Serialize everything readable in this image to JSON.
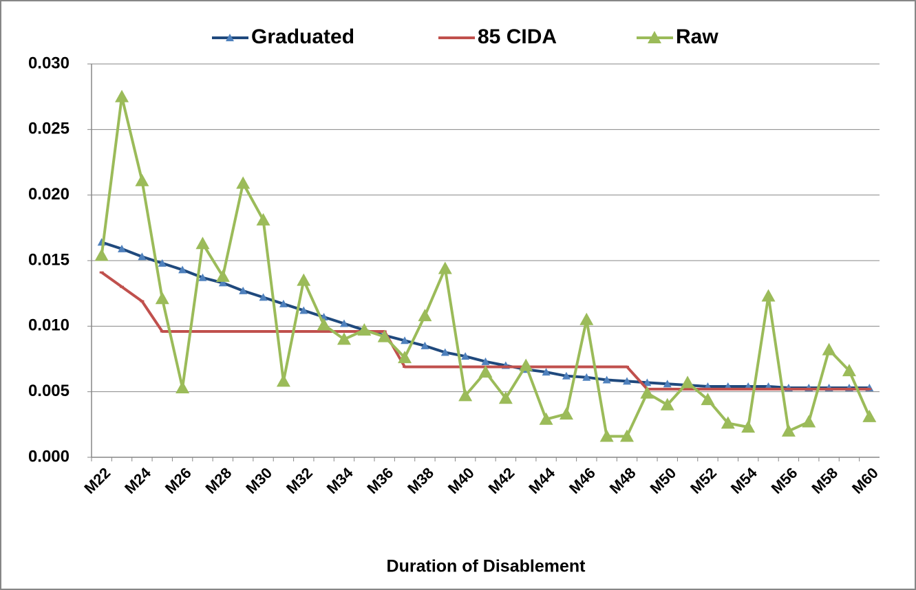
{
  "chart_data": {
    "type": "line",
    "x_label": "Duration of Disablement",
    "categories": [
      "M22",
      null,
      "M24",
      null,
      "M26",
      null,
      "M28",
      null,
      "M30",
      null,
      "M32",
      null,
      "M34",
      null,
      "M36",
      null,
      "M38",
      null,
      "M40",
      null,
      "M42",
      null,
      "M44",
      null,
      "M46",
      null,
      "M48",
      null,
      "M50",
      null,
      "M52",
      null,
      "M54",
      null,
      "M56",
      null,
      "M58",
      null,
      "M60"
    ],
    "ylim": [
      0,
      0.03
    ],
    "yticks": [
      {
        "value": 0,
        "label": "0.000"
      },
      {
        "value": 0.005,
        "label": "0.005"
      },
      {
        "value": 0.01,
        "label": "0.010"
      },
      {
        "value": 0.015,
        "label": "0.015"
      },
      {
        "value": 0.02,
        "label": "0.020"
      },
      {
        "value": 0.025,
        "label": "0.025"
      },
      {
        "value": 0.03,
        "label": "0.030"
      }
    ],
    "grid": true,
    "legend": "top",
    "series": [
      {
        "name": "Graduated",
        "color": "#1f497d",
        "marker": "small-triangle",
        "marker_color": "#4f81bd",
        "values": [
          0.0164,
          0.0159,
          0.0153,
          0.0148,
          0.0143,
          0.0137,
          0.0133,
          0.0127,
          0.0122,
          0.0117,
          0.0112,
          0.0107,
          0.0102,
          0.0097,
          0.0093,
          0.0089,
          0.0085,
          0.008,
          0.0077,
          0.0073,
          0.007,
          0.0067,
          0.0065,
          0.0062,
          0.0061,
          0.0059,
          0.0058,
          0.0057,
          0.0056,
          0.0055,
          0.0054,
          0.0054,
          0.0054,
          0.0054,
          0.0053,
          0.0053,
          0.0053,
          0.0053,
          0.0053
        ]
      },
      {
        "name": "85 CIDA",
        "color": "#c0504d",
        "marker": "dash",
        "marker_color": "#c0504d",
        "values": [
          0.0141,
          0.013,
          0.0119,
          0.0096,
          0.0096,
          0.0096,
          0.0096,
          0.0096,
          0.0096,
          0.0096,
          0.0096,
          0.0096,
          0.0096,
          0.0096,
          0.0096,
          0.0069,
          0.0069,
          0.0069,
          0.0069,
          0.0069,
          0.0069,
          0.0069,
          0.0069,
          0.0069,
          0.0069,
          0.0069,
          0.0069,
          0.0052,
          0.0052,
          0.0052,
          0.0052,
          0.0052,
          0.0052,
          0.0052,
          0.0052,
          0.0052,
          0.0052,
          0.0052,
          0.0052
        ]
      },
      {
        "name": "Raw",
        "color": "#9bbb59",
        "marker": "triangle",
        "marker_color": "#9bbb59",
        "values": [
          0.0154,
          0.0275,
          0.0211,
          0.0121,
          0.0053,
          0.0163,
          0.0138,
          0.0209,
          0.0181,
          0.0058,
          0.0135,
          0.0101,
          0.009,
          0.0097,
          0.0092,
          0.0076,
          0.0108,
          0.0144,
          0.0047,
          0.0065,
          0.0045,
          0.007,
          0.0029,
          0.0033,
          0.0105,
          0.0016,
          0.0016,
          0.0049,
          0.004,
          0.0057,
          0.0044,
          0.0026,
          0.0023,
          0.0123,
          0.002,
          0.0027,
          0.0082,
          0.0066,
          0.0031
        ]
      }
    ]
  }
}
